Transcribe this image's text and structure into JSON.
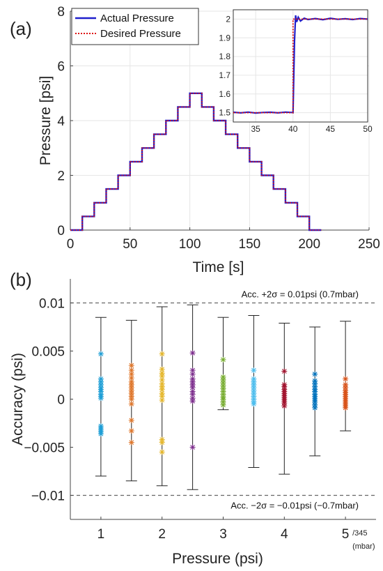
{
  "chart_data": [
    {
      "panel_label": "(a)",
      "type": "line",
      "xlabel": "Time [s]",
      "ylabel": "Pressure [psi]",
      "xlim": [
        0,
        250
      ],
      "ylim": [
        0,
        8
      ],
      "xticks": [
        0,
        50,
        100,
        150,
        200,
        250
      ],
      "yticks": [
        0,
        2,
        4,
        6,
        8
      ],
      "grid": true,
      "legend_position": "top-left",
      "series": [
        {
          "name": "Actual Pressure",
          "color": "#1f1fcc",
          "style": "solid",
          "x": [
            0,
            10,
            10,
            20,
            20,
            30,
            30,
            40,
            40,
            50,
            50,
            60,
            60,
            70,
            70,
            80,
            80,
            90,
            90,
            100,
            100,
            110,
            110,
            120,
            120,
            130,
            130,
            140,
            140,
            150,
            150,
            160,
            160,
            170,
            170,
            180,
            180,
            190,
            190,
            200,
            200,
            210
          ],
          "y": [
            0,
            0,
            0.5,
            0.5,
            1.0,
            1.0,
            1.5,
            1.5,
            2.0,
            2.0,
            2.5,
            2.5,
            3.0,
            3.0,
            3.5,
            3.5,
            4.0,
            4.0,
            4.5,
            4.5,
            5.0,
            5.0,
            4.5,
            4.5,
            4.0,
            4.0,
            3.5,
            3.5,
            3.0,
            3.0,
            2.5,
            2.5,
            2.0,
            2.0,
            1.5,
            1.5,
            1.0,
            1.0,
            0.5,
            0.5,
            0,
            0
          ]
        },
        {
          "name": "Desired Pressure",
          "color": "#dd1111",
          "style": "dotted",
          "x": [
            0,
            10,
            10,
            20,
            20,
            30,
            30,
            40,
            40,
            50,
            50,
            60,
            60,
            70,
            70,
            80,
            80,
            90,
            90,
            100,
            100,
            110,
            110,
            120,
            120,
            130,
            130,
            140,
            140,
            150,
            150,
            160,
            160,
            170,
            170,
            180,
            180,
            190,
            190,
            200,
            200,
            210
          ],
          "y": [
            0,
            0,
            0.5,
            0.5,
            1.0,
            1.0,
            1.5,
            1.5,
            2.0,
            2.0,
            2.5,
            2.5,
            3.0,
            3.0,
            3.5,
            3.5,
            4.0,
            4.0,
            4.5,
            4.5,
            5.0,
            5.0,
            4.5,
            4.5,
            4.0,
            4.0,
            3.5,
            3.5,
            3.0,
            3.0,
            2.5,
            2.5,
            2.0,
            2.0,
            1.5,
            1.5,
            1.0,
            1.0,
            0.5,
            0.5,
            0,
            0
          ]
        }
      ]
    },
    {
      "panel_label": "",
      "type": "line",
      "role": "inset",
      "xlim": [
        32,
        50
      ],
      "ylim": [
        1.45,
        2.05
      ],
      "xticks": [
        35,
        40,
        45,
        50
      ],
      "yticks": [
        1.5,
        1.6,
        1.7,
        1.8,
        1.9,
        2.0
      ],
      "ytick_labels": [
        "1.5",
        "1.6",
        "1.7",
        "1.8",
        "1.9",
        "2"
      ],
      "grid": true,
      "series": [
        {
          "name": "Actual Pressure",
          "color": "#1f1fcc",
          "x": [
            32,
            33,
            34,
            35,
            36,
            37,
            38,
            39,
            39.8,
            40.0,
            40.2,
            40.35,
            40.5,
            40.7,
            41,
            41.5,
            42,
            43,
            44,
            45,
            46,
            47,
            48,
            49,
            50
          ],
          "y": [
            1.502,
            1.499,
            1.503,
            1.498,
            1.501,
            1.502,
            1.499,
            1.503,
            1.501,
            1.5,
            1.88,
            2.02,
            1.985,
            2.01,
            1.99,
            2.005,
            1.998,
            2.003,
            1.997,
            2.004,
            1.999,
            2.002,
            1.998,
            2.003,
            2.0
          ]
        },
        {
          "name": "Desired Pressure",
          "color": "#dd1111",
          "x": [
            32,
            40,
            40,
            50
          ],
          "y": [
            1.5,
            1.5,
            2.0,
            2.0
          ]
        }
      ]
    },
    {
      "panel_label": "(b)",
      "type": "scatter",
      "xlabel": "Pressure (psi)",
      "ylabel": "Accuracy (psi)",
      "xlim": [
        0.5,
        5.5
      ],
      "ylim": [
        -0.0125,
        0.0125
      ],
      "xticks": [
        1,
        2,
        3,
        4,
        5
      ],
      "yticks": [
        -0.01,
        -0.005,
        0,
        0.005,
        0.01
      ],
      "ytick_labels": [
        "−0.01",
        "−0.005",
        "0",
        "0.005",
        "0.01"
      ],
      "grid": false,
      "xunit_note": "/345",
      "xunit_note2": "(mbar)",
      "reference_lines": [
        {
          "y": 0.01,
          "label": "Acc. +2σ = 0.01psi (0.7mbar)"
        },
        {
          "y": -0.01,
          "label": "Acc. −2σ = −0.01psi (−0.7mbar)"
        }
      ],
      "series": [
        {
          "x": 1.0,
          "color": "#1f9fd6",
          "err_low": -0.008,
          "err_high": 0.0085,
          "values": [
            0.0047,
            0.0021,
            0.0018,
            0.0015,
            0.0012,
            0.001,
            0.0008,
            0.0005,
            0.0003,
            0.0001,
            -0.0028,
            -0.003,
            -0.0032,
            -0.0034,
            -0.0036
          ]
        },
        {
          "x": 1.5,
          "color": "#e0762a",
          "err_low": -0.0085,
          "err_high": 0.0082,
          "values": [
            0.0035,
            0.003,
            0.0026,
            0.0022,
            0.0018,
            0.0015,
            0.0012,
            0.0009,
            0.0006,
            0.0003,
            0.0,
            -0.0005,
            -0.0022,
            -0.0033,
            -0.0045
          ]
        },
        {
          "x": 2.0,
          "color": "#e6b729",
          "err_low": -0.009,
          "err_high": 0.0096,
          "values": [
            0.0047,
            0.0031,
            0.0027,
            0.0024,
            0.002,
            0.0016,
            0.0013,
            0.001,
            0.0006,
            0.0003,
            -0.0001,
            -0.0042,
            -0.0045,
            -0.0055
          ]
        },
        {
          "x": 2.5,
          "color": "#7e2f8e",
          "err_low": -0.0094,
          "err_high": 0.0098,
          "values": [
            0.0048,
            0.003,
            0.0026,
            0.0021,
            0.0018,
            0.0015,
            0.0012,
            0.0008,
            0.0005,
            0.0001,
            -0.0002,
            -0.005
          ]
        },
        {
          "x": 3.0,
          "color": "#77ac30",
          "err_low": -0.0011,
          "err_high": 0.0085,
          "values": [
            0.0041,
            0.0023,
            0.002,
            0.0017,
            0.0014,
            0.0011,
            0.0008,
            0.0005,
            0.0002,
            0.0,
            -0.0003,
            -0.0006
          ]
        },
        {
          "x": 3.5,
          "color": "#4dbeee",
          "err_low": -0.0071,
          "err_high": 0.0087,
          "values": [
            0.003,
            0.0021,
            0.0018,
            0.0015,
            0.0012,
            0.0009,
            0.0006,
            0.0003,
            0.0,
            -0.0003,
            -0.0005
          ]
        },
        {
          "x": 4.0,
          "color": "#a2142f",
          "err_low": -0.0078,
          "err_high": 0.0079,
          "values": [
            0.0029,
            0.0015,
            0.0013,
            0.001,
            0.0008,
            0.0006,
            0.0004,
            0.0002,
            0.0,
            -0.0002,
            -0.0004,
            -0.0007
          ]
        },
        {
          "x": 4.5,
          "color": "#0072bd",
          "err_low": -0.0059,
          "err_high": 0.0075,
          "values": [
            0.0026,
            0.0019,
            0.0016,
            0.0013,
            0.001,
            0.0008,
            0.0005,
            0.0003,
            0.0001,
            -0.0001,
            -0.0003,
            -0.0006,
            -0.0009
          ]
        },
        {
          "x": 5.0,
          "color": "#d95319",
          "err_low": -0.0033,
          "err_high": 0.0081,
          "values": [
            0.0021,
            0.0015,
            0.0012,
            0.0009,
            0.0007,
            0.0005,
            0.0003,
            0.0001,
            -0.0001,
            -0.0003,
            -0.0005,
            -0.0007,
            -0.0009
          ]
        }
      ]
    }
  ]
}
